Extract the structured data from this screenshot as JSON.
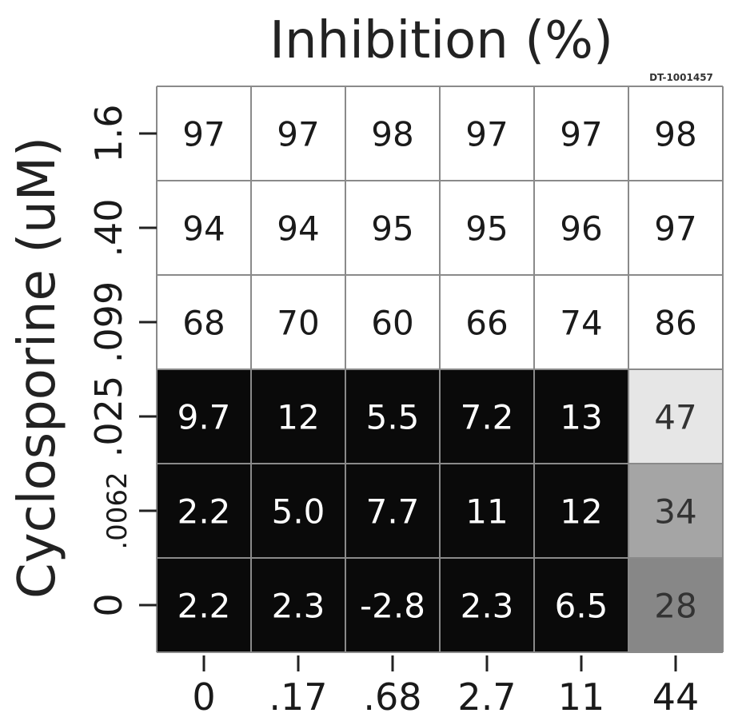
{
  "chart_data": {
    "type": "heatmap",
    "title": "Inhibition (%)",
    "ylabel": "Cyclosporine (uM)",
    "xlabel": "",
    "corner_code": "DT-1001457",
    "x_categories": [
      "0",
      ".17",
      ".68",
      "2.7",
      "11",
      "44"
    ],
    "y_categories": [
      "1.6",
      ".40",
      ".099",
      ".025",
      ".0062",
      "0"
    ],
    "values": [
      [
        97,
        97,
        98,
        97,
        97,
        98
      ],
      [
        94,
        94,
        95,
        95,
        96,
        97
      ],
      [
        68,
        70,
        60,
        66,
        74,
        86
      ],
      [
        9.7,
        12,
        5.5,
        7.2,
        13,
        47
      ],
      [
        2.2,
        5.0,
        7.7,
        11,
        12,
        34
      ],
      [
        2.2,
        2.3,
        -2.8,
        2.3,
        6.5,
        28
      ]
    ],
    "value_labels": [
      [
        "97",
        "97",
        "98",
        "97",
        "97",
        "98"
      ],
      [
        "94",
        "94",
        "95",
        "95",
        "96",
        "97"
      ],
      [
        "68",
        "70",
        "60",
        "66",
        "74",
        "86"
      ],
      [
        "9.7",
        "12",
        "5.5",
        "7.2",
        "13",
        "47"
      ],
      [
        "2.2",
        "5.0",
        "7.7",
        "11",
        "12",
        "34"
      ],
      [
        "2.2",
        "2.3",
        "-2.8",
        "2.3",
        "6.5",
        "28"
      ]
    ],
    "colors": {
      "low": "#0a0a0a",
      "mid_47": "#f2f2f2",
      "mid_34": "#a6a6a6",
      "mid_28": "#7a7a7a",
      "high": "#ffffff",
      "grid": "#8a8a8a"
    }
  }
}
